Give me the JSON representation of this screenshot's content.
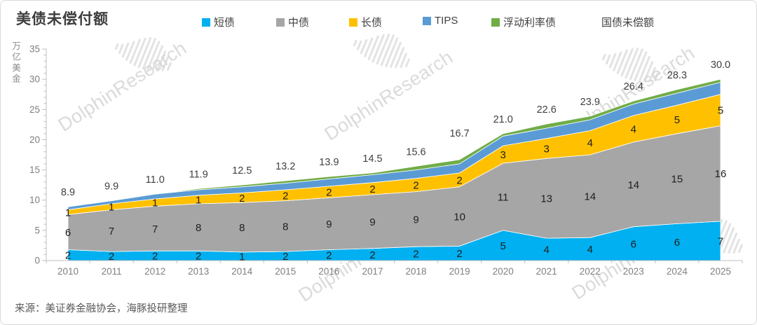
{
  "title": "美债未偿付额",
  "y_axis_title": "万亿美金",
  "source": "来源：美证券金融协会，海豚投研整理",
  "watermark": {
    "text": "DolphinResearch"
  },
  "legend": [
    {
      "label": "短债",
      "color": "#00B0F0"
    },
    {
      "label": "中债",
      "color": "#A6A6A6"
    },
    {
      "label": "长债",
      "color": "#FFC000"
    },
    {
      "label": "TIPS",
      "color": "#5B9BD5"
    },
    {
      "label": "浮动利率债",
      "color": "#70AD47"
    },
    {
      "label": "国债未偿额",
      "color": null
    }
  ],
  "chart_data": {
    "type": "area",
    "stacked": true,
    "title": "美债未偿付额",
    "ylabel": "万亿美金",
    "ylim": [
      0,
      35
    ],
    "y_ticks": [
      0,
      5,
      10,
      15,
      20,
      25,
      30,
      35
    ],
    "grid": false,
    "legend_position": "top",
    "categories": [
      2010,
      2011,
      2012,
      2013,
      2014,
      2015,
      2016,
      2017,
      2018,
      2019,
      2020,
      2021,
      2022,
      2023,
      2024,
      2025
    ],
    "series": [
      {
        "name": "短债",
        "color": "#00B0F0",
        "values": [
          1.8,
          1.5,
          1.6,
          1.6,
          1.4,
          1.5,
          1.8,
          2.0,
          2.3,
          2.4,
          5.0,
          3.7,
          3.8,
          5.6,
          6.1,
          6.5
        ],
        "labels": [
          "2",
          "2",
          "2",
          "2",
          "1",
          "2",
          "2",
          "2",
          "2",
          "2",
          "5",
          "4",
          "4",
          "6",
          "6",
          "7"
        ]
      },
      {
        "name": "中债",
        "color": "#A6A6A6",
        "values": [
          5.8,
          6.9,
          7.4,
          7.8,
          8.2,
          8.4,
          8.6,
          8.9,
          9.1,
          9.8,
          11.1,
          13.2,
          13.7,
          14.0,
          14.9,
          15.8
        ],
        "labels": [
          "6",
          "7",
          "7",
          "8",
          "8",
          "8",
          "9",
          "9",
          "9",
          "10",
          "11",
          "13",
          "14",
          "14",
          "15",
          "16"
        ]
      },
      {
        "name": "长债",
        "color": "#FFC000",
        "values": [
          0.8,
          1.0,
          1.2,
          1.4,
          1.6,
          1.8,
          1.9,
          2.0,
          2.2,
          2.3,
          2.9,
          3.3,
          4.0,
          4.4,
          4.7,
          5.2
        ],
        "labels": [
          "1",
          "1",
          "1",
          "1",
          "2",
          "2",
          "2",
          "2",
          "2",
          "2",
          "3",
          "3",
          "4",
          "4",
          "5",
          "5"
        ]
      },
      {
        "name": "TIPS",
        "color": "#5B9BD5",
        "values": [
          0.5,
          0.5,
          0.8,
          0.9,
          1.0,
          1.1,
          1.2,
          1.3,
          1.4,
          1.5,
          1.6,
          1.7,
          1.8,
          1.9,
          2.0,
          2.0
        ],
        "labels": null
      },
      {
        "name": "浮动利率债",
        "color": "#70AD47",
        "values": [
          0,
          0,
          0,
          0.2,
          0.3,
          0.4,
          0.4,
          0.3,
          0.6,
          0.7,
          0.4,
          0.7,
          0.6,
          0.5,
          0.6,
          0.5
        ],
        "labels": null
      }
    ],
    "totals": {
      "name": "国债未偿额",
      "labels": [
        "8.9",
        "9.9",
        "11.0",
        "11.9",
        "12.5",
        "13.2",
        "13.9",
        "14.5",
        "15.6",
        "16.7",
        "21.0",
        "22.6",
        "23.9",
        "26.4",
        "28.3",
        "30.0"
      ]
    }
  }
}
